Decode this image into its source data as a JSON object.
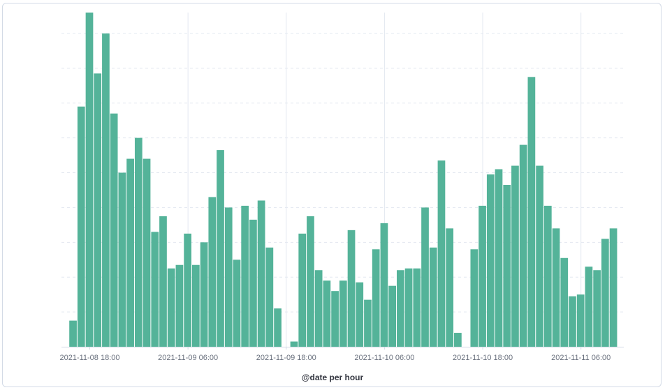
{
  "chart_data": {
    "type": "bar",
    "xlabel": "@date per hour",
    "ylabel": "",
    "title": "",
    "ylim": [
      0,
      96
    ],
    "grid": "horizontal dashed, vertical at major ticks",
    "colors": {
      "bar": "#54b399",
      "grid": "#e3e8f0",
      "axis": "#d3dae6"
    },
    "x_ticks": [
      {
        "label": "2021-11-08 18:00",
        "index": 2
      },
      {
        "label": "2021-11-09 06:00",
        "index": 14
      },
      {
        "label": "2021-11-09 18:00",
        "index": 26
      },
      {
        "label": "2021-11-10 06:00",
        "index": 38
      },
      {
        "label": "2021-11-10 18:00",
        "index": 50
      },
      {
        "label": "2021-11-11 06:00",
        "index": 62
      }
    ],
    "x_start": "2021-11-08 16:00",
    "x_interval": "1 hour",
    "values": [
      7.5,
      69,
      96,
      78.5,
      90,
      67,
      50,
      54,
      60,
      54,
      33,
      37.5,
      22.5,
      23.5,
      32.5,
      23.5,
      30,
      43,
      56.5,
      40,
      25,
      40.5,
      36.5,
      42,
      28.5,
      11,
      0,
      1.5,
      32.5,
      37.5,
      22,
      19,
      16,
      19,
      33.5,
      18.5,
      13.5,
      28,
      35.5,
      17.5,
      22,
      22.5,
      22.5,
      40,
      28.5,
      53.5,
      34,
      4,
      0,
      28,
      40.5,
      49.5,
      51,
      46.5,
      52,
      58,
      77.5,
      52,
      40.5,
      34,
      25.5,
      14.5,
      15,
      23,
      22,
      31,
      34
    ]
  }
}
